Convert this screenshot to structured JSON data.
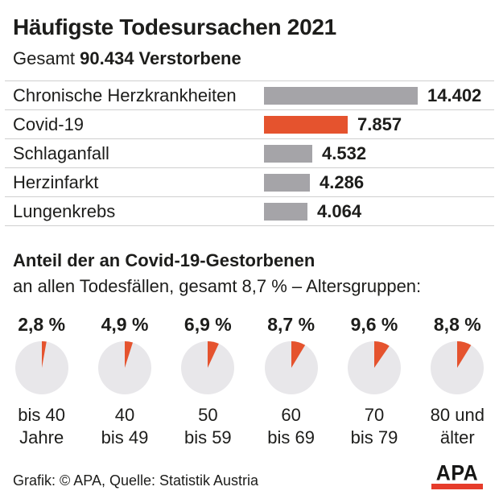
{
  "header": {
    "title": "Häufigste Todesursachen 2021",
    "subtitle_prefix": "Gesamt",
    "subtitle_total": "90.434 Verstorbene"
  },
  "chart_data": [
    {
      "type": "bar",
      "orientation": "horizontal",
      "title": "Häufigste Todesursachen 2021",
      "subtitle": "Gesamt 90.434 Verstorbene",
      "categories": [
        "Chronische Herzkrankheiten",
        "Covid-19",
        "Schlaganfall",
        "Herzinfarkt",
        "Lungenkrebs"
      ],
      "values": [
        14402,
        7857,
        4532,
        4286,
        4064
      ],
      "value_labels": [
        "14.402",
        "7.857",
        "4.532",
        "4.286",
        "4.064"
      ],
      "highlight_index": 1,
      "highlight_category": "Covid-19",
      "xlim": [
        0,
        14402
      ],
      "grid": false,
      "legend": false
    },
    {
      "type": "pie",
      "title": "Anteil der an Covid-19-Gestorbenen an allen Todesfällen, gesamt 8,7 % – Altersgruppen",
      "total_pct": 8.7,
      "groups": [
        {
          "label": "bis 40 Jahre",
          "label_lines": [
            "bis 40",
            "Jahre"
          ],
          "value_pct": 2.8,
          "pct_label": "2,8 %"
        },
        {
          "label": "40 bis 49",
          "label_lines": [
            "40",
            "bis 49"
          ],
          "value_pct": 4.9,
          "pct_label": "4,9 %"
        },
        {
          "label": "50 bis 59",
          "label_lines": [
            "50",
            "bis 59"
          ],
          "value_pct": 6.9,
          "pct_label": "6,9 %"
        },
        {
          "label": "60 bis 69",
          "label_lines": [
            "60",
            "bis 69"
          ],
          "value_pct": 8.7,
          "pct_label": "8,7 %"
        },
        {
          "label": "70 bis 79",
          "label_lines": [
            "70",
            "bis 79"
          ],
          "value_pct": 9.6,
          "pct_label": "9,6 %"
        },
        {
          "label": "80 und älter",
          "label_lines": [
            "80 und",
            "älter"
          ],
          "value_pct": 8.8,
          "pct_label": "8,8 %"
        }
      ]
    }
  ],
  "section2": {
    "title": "Anteil der an Covid-19-Gestorbenen",
    "subtitle": "an allen Todesfällen, gesamt 8,7 % – Altersgruppen:"
  },
  "footer": {
    "credit": "Grafik: © APA, Quelle: Statistik Austria",
    "logo_text": "APA"
  },
  "colors": {
    "accent_orange": "#e5532e",
    "bar_gray": "#a5a4a8",
    "pie_bg_gray": "#e8e7ea",
    "separator": "#cfcfcf",
    "text": "#1d1d1b",
    "logo_red": "#e63c2b"
  }
}
